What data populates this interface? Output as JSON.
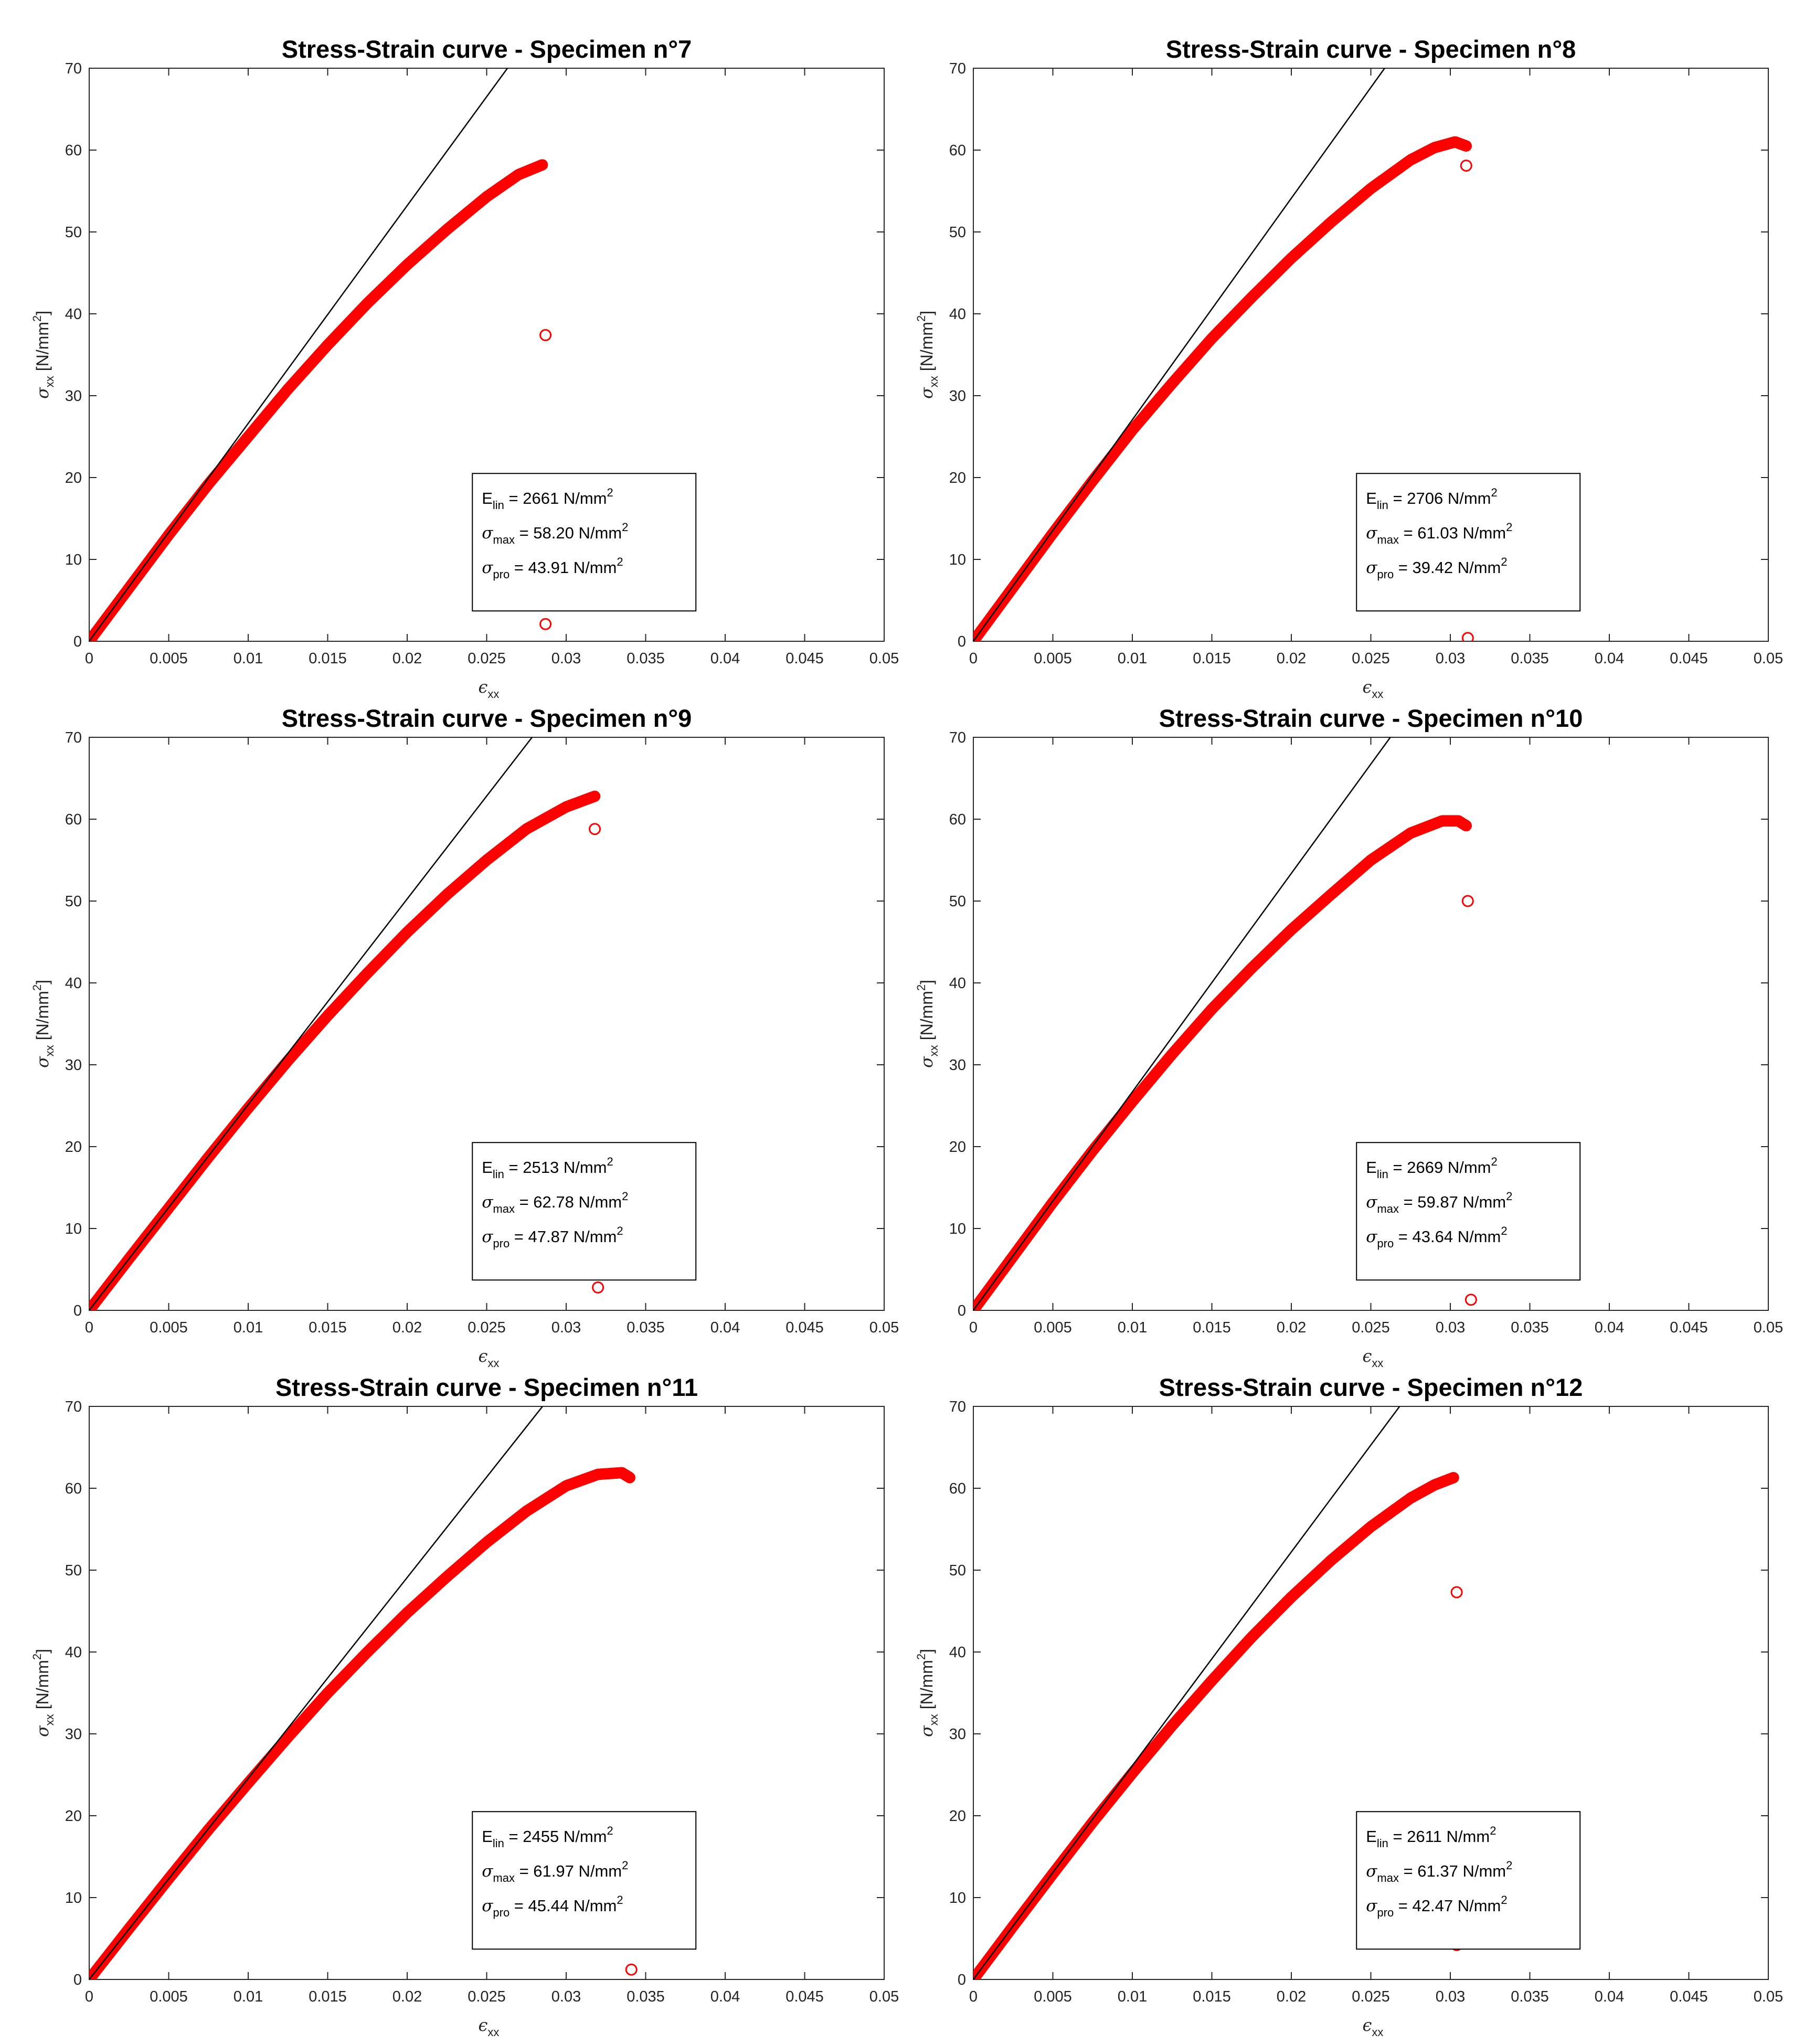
{
  "chart_data": [
    {
      "type": "scatter",
      "title": "Stress-Strain curve - Specimen n°7",
      "xlabel": {
        "symbol": "ϵ",
        "sub": "xx"
      },
      "ylabel": {
        "symbol": "σ",
        "sub": "xx",
        "unit_pre": " [N/mm",
        "unit_sup": "2",
        "unit_post": "]"
      },
      "xlim": [
        0,
        0.05
      ],
      "ylim": [
        0,
        70
      ],
      "xticks": [
        0,
        0.005,
        0.01,
        0.015,
        0.02,
        0.025,
        0.03,
        0.035,
        0.04,
        0.045,
        0.05
      ],
      "xtick_labels": [
        "0",
        "0.005",
        "0.01",
        "0.015",
        "0.02",
        "0.025",
        "0.03",
        "0.035",
        "0.04",
        "0.045",
        "0.05"
      ],
      "yticks": [
        0,
        10,
        20,
        30,
        40,
        50,
        60,
        70
      ],
      "ytick_labels": [
        "0",
        "10",
        "20",
        "30",
        "40",
        "50",
        "60",
        "70"
      ],
      "grid": false,
      "series": [
        {
          "kind": "points",
          "color": "#ff0000",
          "x": [
            0,
            0.0025,
            0.005,
            0.0075,
            0.01,
            0.0125,
            0.015,
            0.0175,
            0.02,
            0.0225,
            0.025,
            0.027,
            0.0285
          ],
          "y": [
            0,
            6.5,
            13.0,
            19.2,
            25.0,
            30.8,
            36.2,
            41.3,
            46.0,
            50.3,
            54.3,
            57.0,
            58.2
          ]
        },
        {
          "kind": "points",
          "color": "#ff0000",
          "x": [
            0.0287,
            0.0287
          ],
          "y": [
            37.4,
            2.1
          ]
        },
        {
          "kind": "line",
          "color": "#000000",
          "slope": 2661
        }
      ],
      "annotation": [
        {
          "symbol": "E",
          "sub": "lin",
          "text": " = 2661 N/mm",
          "sup": "2"
        },
        {
          "symbol": "σ",
          "sub": "max",
          "text": " = 58.20 N/mm",
          "sup": "2"
        },
        {
          "symbol": "σ",
          "sub": "pro",
          "text": " = 43.91 N/mm",
          "sup": "2"
        }
      ]
    },
    {
      "type": "scatter",
      "title": "Stress-Strain curve - Specimen n°8",
      "xlabel": {
        "symbol": "ϵ",
        "sub": "xx"
      },
      "ylabel": {
        "symbol": "σ",
        "sub": "xx",
        "unit_pre": " [N/mm",
        "unit_sup": "2",
        "unit_post": "]"
      },
      "xlim": [
        0,
        0.05
      ],
      "ylim": [
        0,
        70
      ],
      "xticks": [
        0,
        0.005,
        0.01,
        0.015,
        0.02,
        0.025,
        0.03,
        0.035,
        0.04,
        0.045,
        0.05
      ],
      "xtick_labels": [
        "0",
        "0.005",
        "0.01",
        "0.015",
        "0.02",
        "0.025",
        "0.03",
        "0.035",
        "0.04",
        "0.045",
        "0.05"
      ],
      "yticks": [
        0,
        10,
        20,
        30,
        40,
        50,
        60,
        70
      ],
      "ytick_labels": [
        "0",
        "10",
        "20",
        "30",
        "40",
        "50",
        "60",
        "70"
      ],
      "grid": false,
      "series": [
        {
          "kind": "points",
          "color": "#ff0000",
          "x": [
            0,
            0.0025,
            0.005,
            0.0075,
            0.01,
            0.0125,
            0.015,
            0.0175,
            0.02,
            0.0225,
            0.025,
            0.0275,
            0.029,
            0.0303,
            0.031
          ],
          "y": [
            0,
            6.6,
            13.2,
            19.6,
            25.8,
            31.5,
            37.0,
            42.0,
            46.8,
            51.2,
            55.3,
            58.8,
            60.3,
            61.0,
            60.5
          ]
        },
        {
          "kind": "points",
          "color": "#ff0000",
          "x": [
            0.031,
            0.0311
          ],
          "y": [
            58.1,
            0.4
          ]
        },
        {
          "kind": "line",
          "color": "#000000",
          "slope": 2706
        }
      ],
      "annotation": [
        {
          "symbol": "E",
          "sub": "lin",
          "text": " = 2706 N/mm",
          "sup": "2"
        },
        {
          "symbol": "σ",
          "sub": "max",
          "text": " = 61.03 N/mm",
          "sup": "2"
        },
        {
          "symbol": "σ",
          "sub": "pro",
          "text": " = 39.42 N/mm",
          "sup": "2"
        }
      ]
    },
    {
      "type": "scatter",
      "title": "Stress-Strain curve - Specimen n°9",
      "xlabel": {
        "symbol": "ϵ",
        "sub": "xx"
      },
      "ylabel": {
        "symbol": "σ",
        "sub": "xx",
        "unit_pre": " [N/mm",
        "unit_sup": "2",
        "unit_post": "]"
      },
      "xlim": [
        0,
        0.05
      ],
      "ylim": [
        0,
        70
      ],
      "xticks": [
        0,
        0.005,
        0.01,
        0.015,
        0.02,
        0.025,
        0.03,
        0.035,
        0.04,
        0.045,
        0.05
      ],
      "xtick_labels": [
        "0",
        "0.005",
        "0.01",
        "0.015",
        "0.02",
        "0.025",
        "0.03",
        "0.035",
        "0.04",
        "0.045",
        "0.05"
      ],
      "yticks": [
        0,
        10,
        20,
        30,
        40,
        50,
        60,
        70
      ],
      "ytick_labels": [
        "0",
        "10",
        "20",
        "30",
        "40",
        "50",
        "60",
        "70"
      ],
      "grid": false,
      "series": [
        {
          "kind": "points",
          "color": "#ff0000",
          "x": [
            0,
            0.0025,
            0.005,
            0.0075,
            0.01,
            0.0125,
            0.015,
            0.0175,
            0.02,
            0.0225,
            0.025,
            0.0275,
            0.03,
            0.0318
          ],
          "y": [
            0,
            6.3,
            12.5,
            18.7,
            24.7,
            30.5,
            36.0,
            41.2,
            46.2,
            50.8,
            55.0,
            58.8,
            61.5,
            62.8
          ]
        },
        {
          "kind": "points",
          "color": "#ff0000",
          "x": [
            0.0318,
            0.032
          ],
          "y": [
            58.8,
            2.8
          ]
        },
        {
          "kind": "line",
          "color": "#000000",
          "slope": 2513
        }
      ],
      "annotation": [
        {
          "symbol": "E",
          "sub": "lin",
          "text": " = 2513 N/mm",
          "sup": "2"
        },
        {
          "symbol": "σ",
          "sub": "max",
          "text": " = 62.78 N/mm",
          "sup": "2"
        },
        {
          "symbol": "σ",
          "sub": "pro",
          "text": " = 47.87 N/mm",
          "sup": "2"
        }
      ]
    },
    {
      "type": "scatter",
      "title": "Stress-Strain curve - Specimen n°10",
      "xlabel": {
        "symbol": "ϵ",
        "sub": "xx"
      },
      "ylabel": {
        "symbol": "σ",
        "sub": "xx",
        "unit_pre": " [N/mm",
        "unit_sup": "2",
        "unit_post": "]"
      },
      "xlim": [
        0,
        0.05
      ],
      "ylim": [
        0,
        70
      ],
      "xticks": [
        0,
        0.005,
        0.01,
        0.015,
        0.02,
        0.025,
        0.03,
        0.035,
        0.04,
        0.045,
        0.05
      ],
      "xtick_labels": [
        "0",
        "0.005",
        "0.01",
        "0.015",
        "0.02",
        "0.025",
        "0.03",
        "0.035",
        "0.04",
        "0.045",
        "0.05"
      ],
      "yticks": [
        0,
        10,
        20,
        30,
        40,
        50,
        60,
        70
      ],
      "ytick_labels": [
        "0",
        "10",
        "20",
        "30",
        "40",
        "50",
        "60",
        "70"
      ],
      "grid": false,
      "series": [
        {
          "kind": "points",
          "color": "#ff0000",
          "x": [
            0,
            0.0025,
            0.005,
            0.0075,
            0.01,
            0.0125,
            0.015,
            0.0175,
            0.02,
            0.0225,
            0.025,
            0.0275,
            0.0295,
            0.0305,
            0.031
          ],
          "y": [
            0,
            6.6,
            13.2,
            19.5,
            25.5,
            31.3,
            36.8,
            41.8,
            46.5,
            50.8,
            55.0,
            58.3,
            59.8,
            59.8,
            59.2
          ]
        },
        {
          "kind": "points",
          "color": "#ff0000",
          "x": [
            0.0311,
            0.0313
          ],
          "y": [
            50.0,
            1.3
          ]
        },
        {
          "kind": "line",
          "color": "#000000",
          "slope": 2669
        }
      ],
      "annotation": [
        {
          "symbol": "E",
          "sub": "lin",
          "text": " = 2669 N/mm",
          "sup": "2"
        },
        {
          "symbol": "σ",
          "sub": "max",
          "text": " = 59.87 N/mm",
          "sup": "2"
        },
        {
          "symbol": "σ",
          "sub": "pro",
          "text": " = 43.64 N/mm",
          "sup": "2"
        }
      ]
    },
    {
      "type": "scatter",
      "title": "Stress-Strain curve - Specimen n°11",
      "xlabel": {
        "symbol": "ϵ",
        "sub": "xx"
      },
      "ylabel": {
        "symbol": "σ",
        "sub": "xx",
        "unit_pre": " [N/mm",
        "unit_sup": "2",
        "unit_post": "]"
      },
      "xlim": [
        0,
        0.05
      ],
      "ylim": [
        0,
        70
      ],
      "xticks": [
        0,
        0.005,
        0.01,
        0.015,
        0.02,
        0.025,
        0.03,
        0.035,
        0.04,
        0.045,
        0.05
      ],
      "xtick_labels": [
        "0",
        "0.005",
        "0.01",
        "0.015",
        "0.02",
        "0.025",
        "0.03",
        "0.035",
        "0.04",
        "0.045",
        "0.05"
      ],
      "yticks": [
        0,
        10,
        20,
        30,
        40,
        50,
        60,
        70
      ],
      "ytick_labels": [
        "0",
        "10",
        "20",
        "30",
        "40",
        "50",
        "60",
        "70"
      ],
      "grid": false,
      "series": [
        {
          "kind": "points",
          "color": "#ff0000",
          "x": [
            0,
            0.0025,
            0.005,
            0.0075,
            0.01,
            0.0125,
            0.015,
            0.0175,
            0.02,
            0.0225,
            0.025,
            0.0275,
            0.03,
            0.032,
            0.0335,
            0.034
          ],
          "y": [
            0,
            6.2,
            12.3,
            18.3,
            24.0,
            29.6,
            35.0,
            40.0,
            44.8,
            49.2,
            53.4,
            57.2,
            60.3,
            61.7,
            61.9,
            61.3
          ]
        },
        {
          "kind": "points",
          "color": "#ff0000",
          "x": [
            0.0341
          ],
          "y": [
            1.2
          ]
        },
        {
          "kind": "line",
          "color": "#000000",
          "slope": 2455
        }
      ],
      "annotation": [
        {
          "symbol": "E",
          "sub": "lin",
          "text": " = 2455 N/mm",
          "sup": "2"
        },
        {
          "symbol": "σ",
          "sub": "max",
          "text": " = 61.97 N/mm",
          "sup": "2"
        },
        {
          "symbol": "σ",
          "sub": "pro",
          "text": " = 45.44 N/mm",
          "sup": "2"
        }
      ]
    },
    {
      "type": "scatter",
      "title": "Stress-Strain curve - Specimen n°12",
      "xlabel": {
        "symbol": "ϵ",
        "sub": "xx"
      },
      "ylabel": {
        "symbol": "σ",
        "sub": "xx",
        "unit_pre": " [N/mm",
        "unit_sup": "2",
        "unit_post": "]"
      },
      "xlim": [
        0,
        0.05
      ],
      "ylim": [
        0,
        70
      ],
      "xticks": [
        0,
        0.005,
        0.01,
        0.015,
        0.02,
        0.025,
        0.03,
        0.035,
        0.04,
        0.045,
        0.05
      ],
      "xtick_labels": [
        "0",
        "0.005",
        "0.01",
        "0.015",
        "0.02",
        "0.025",
        "0.03",
        "0.035",
        "0.04",
        "0.045",
        "0.05"
      ],
      "yticks": [
        0,
        10,
        20,
        30,
        40,
        50,
        60,
        70
      ],
      "ytick_labels": [
        "0",
        "10",
        "20",
        "30",
        "40",
        "50",
        "60",
        "70"
      ],
      "grid": false,
      "series": [
        {
          "kind": "points",
          "color": "#ff0000",
          "x": [
            0,
            0.0025,
            0.005,
            0.0075,
            0.01,
            0.0125,
            0.015,
            0.0175,
            0.02,
            0.0225,
            0.025,
            0.0275,
            0.029,
            0.0302
          ],
          "y": [
            0,
            6.5,
            12.9,
            19.2,
            25.2,
            31.0,
            36.5,
            41.8,
            46.7,
            51.2,
            55.3,
            58.8,
            60.4,
            61.3
          ]
        },
        {
          "kind": "points",
          "color": "#ff0000",
          "x": [
            0.0304,
            0.0304
          ],
          "y": [
            47.3,
            4.2
          ]
        },
        {
          "kind": "line",
          "color": "#000000",
          "slope": 2611
        }
      ],
      "annotation": [
        {
          "symbol": "E",
          "sub": "lin",
          "text": " = 2611 N/mm",
          "sup": "2"
        },
        {
          "symbol": "σ",
          "sub": "max",
          "text": " = 61.37 N/mm",
          "sup": "2"
        },
        {
          "symbol": "σ",
          "sub": "pro",
          "text": " = 42.47 N/mm",
          "sup": "2"
        }
      ]
    }
  ]
}
